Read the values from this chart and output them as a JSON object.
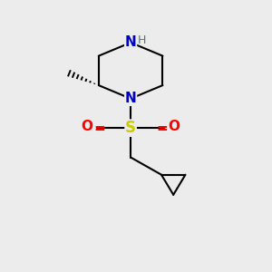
{
  "background_color": "#ececec",
  "atom_colors": {
    "N": "#0000cc",
    "S": "#cccc00",
    "O": "#ff0000",
    "C": "#000000",
    "H": "#4a7a7a"
  },
  "bond_color": "#000000",
  "bond_width": 1.5,
  "figsize": [
    3.0,
    3.0
  ],
  "dpi": 100,
  "xlim": [
    0,
    10
  ],
  "ylim": [
    0,
    10
  ]
}
